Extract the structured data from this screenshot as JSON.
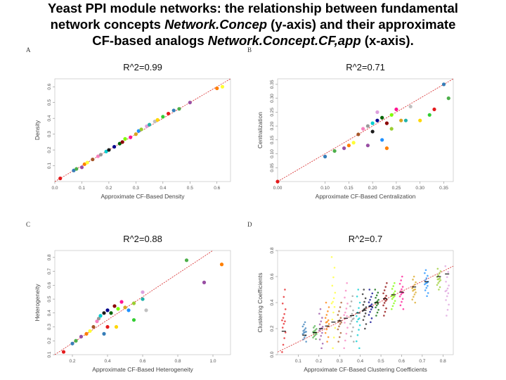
{
  "slide": {
    "title_line1": "Yeast PPI module networks: the relationship between fundamental",
    "title_line2_a": "network concepts ",
    "title_line2_b": "Network.Concep",
    "title_line2_c": " (y-axis) and their approximate",
    "title_line3_a": "CF-based analogs ",
    "title_line3_b": "Network.Concept.CF,app",
    "title_line3_c": " (x-axis)."
  },
  "colors": {
    "fit_line": "#d62728",
    "points": [
      "#e41a1c",
      "#377eb8",
      "#4daf4a",
      "#984ea3",
      "#ff7f00",
      "#ffff33",
      "#a65628",
      "#f781bf",
      "#999999",
      "#00ced1",
      "#1b1b1b",
      "#00008b",
      "#006400",
      "#8b0000",
      "#7fff00",
      "#ff1493",
      "#daa520",
      "#1e90ff",
      "#9acd32",
      "#dda0dd",
      "#20b2aa",
      "#c0c0c0",
      "#ffd700",
      "#32cd32"
    ]
  },
  "chart_data": [
    {
      "type": "scatter",
      "panel": "A",
      "title": "R^2=0.99",
      "xlabel": "Approximate CF-Based Density",
      "ylabel": "Density",
      "xlim": [
        0,
        0.65
      ],
      "ylim": [
        0,
        0.65
      ],
      "xticks": [
        0.0,
        0.1,
        0.2,
        0.3,
        0.4,
        0.5,
        0.6
      ],
      "yticks": [
        0.1,
        0.2,
        0.3,
        0.4,
        0.5,
        0.6
      ],
      "xtick_labels": [
        "0.0",
        "0.1",
        "0.2",
        "0.3",
        "0.4",
        "0.5",
        "0.6"
      ],
      "ytick_labels": [
        "0.1",
        "0.2",
        "0.3",
        "0.4",
        "0.5",
        "0.6"
      ],
      "fit_line": [
        [
          0,
          0
        ],
        [
          0.65,
          0.65
        ]
      ],
      "points": [
        [
          0.02,
          0.02
        ],
        [
          0.07,
          0.07
        ],
        [
          0.08,
          0.08
        ],
        [
          0.1,
          0.09
        ],
        [
          0.11,
          0.11
        ],
        [
          0.12,
          0.12
        ],
        [
          0.14,
          0.14
        ],
        [
          0.16,
          0.16
        ],
        [
          0.17,
          0.17
        ],
        [
          0.19,
          0.19
        ],
        [
          0.2,
          0.2
        ],
        [
          0.22,
          0.22
        ],
        [
          0.24,
          0.24
        ],
        [
          0.25,
          0.25
        ],
        [
          0.26,
          0.27
        ],
        [
          0.28,
          0.28
        ],
        [
          0.3,
          0.3
        ],
        [
          0.31,
          0.32
        ],
        [
          0.32,
          0.33
        ],
        [
          0.34,
          0.35
        ],
        [
          0.35,
          0.36
        ],
        [
          0.37,
          0.38
        ],
        [
          0.38,
          0.39
        ],
        [
          0.4,
          0.41
        ],
        [
          0.42,
          0.43
        ],
        [
          0.44,
          0.45
        ],
        [
          0.46,
          0.46
        ],
        [
          0.5,
          0.5
        ],
        [
          0.6,
          0.59
        ],
        [
          0.62,
          0.6
        ]
      ]
    },
    {
      "type": "scatter",
      "panel": "B",
      "title": "R^2=0.71",
      "xlabel": "Approximate CF-Based Centralization",
      "ylabel": "Centralization",
      "xlim": [
        0,
        0.37
      ],
      "ylim": [
        0,
        0.37
      ],
      "xticks": [
        0.0,
        0.1,
        0.15,
        0.2,
        0.25,
        0.3,
        0.35
      ],
      "yticks": [
        0.05,
        0.1,
        0.15,
        0.2,
        0.25,
        0.3,
        0.35
      ],
      "xtick_labels": [
        "0.00",
        "0.10",
        "0.15",
        "0.20",
        "0.25",
        "0.30",
        "0.35"
      ],
      "ytick_labels": [
        "0.05",
        "0.10",
        "0.15",
        "0.20",
        "0.25",
        "0.30",
        "0.35"
      ],
      "fit_line": [
        [
          0,
          0
        ],
        [
          0.37,
          0.37
        ]
      ],
      "points": [
        [
          0.0,
          0.0
        ],
        [
          0.1,
          0.09
        ],
        [
          0.12,
          0.11
        ],
        [
          0.14,
          0.12
        ],
        [
          0.15,
          0.13
        ],
        [
          0.16,
          0.14
        ],
        [
          0.17,
          0.17
        ],
        [
          0.18,
          0.19
        ],
        [
          0.19,
          0.2
        ],
        [
          0.2,
          0.21
        ],
        [
          0.2,
          0.18
        ],
        [
          0.21,
          0.22
        ],
        [
          0.22,
          0.23
        ],
        [
          0.23,
          0.21
        ],
        [
          0.24,
          0.24
        ],
        [
          0.25,
          0.26
        ],
        [
          0.26,
          0.22
        ],
        [
          0.22,
          0.15
        ],
        [
          0.24,
          0.19
        ],
        [
          0.21,
          0.25
        ],
        [
          0.27,
          0.22
        ],
        [
          0.28,
          0.27
        ],
        [
          0.3,
          0.22
        ],
        [
          0.32,
          0.24
        ],
        [
          0.33,
          0.26
        ],
        [
          0.35,
          0.35
        ],
        [
          0.36,
          0.3
        ],
        [
          0.19,
          0.13
        ],
        [
          0.23,
          0.12
        ]
      ]
    },
    {
      "type": "scatter",
      "panel": "C",
      "title": "R^2=0.88",
      "xlabel": "Approximate CF-Based Heterogeneity",
      "ylabel": "Heterogeneity",
      "xlim": [
        0.1,
        1.1
      ],
      "ylim": [
        0.1,
        0.85
      ],
      "xticks": [
        0.2,
        0.4,
        0.6,
        0.8,
        1.0
      ],
      "yticks": [
        0.1,
        0.2,
        0.3,
        0.4,
        0.5,
        0.6,
        0.7,
        0.8
      ],
      "xtick_labels": [
        "0.2",
        "0.4",
        "0.6",
        "0.8",
        "1.0"
      ],
      "ytick_labels": [
        "0.1",
        "0.2",
        "0.3",
        "0.4",
        "0.5",
        "0.6",
        "0.7",
        "0.8"
      ],
      "fit_line": [
        [
          0.1,
          0.1
        ],
        [
          1.0,
          0.85
        ]
      ],
      "points": [
        [
          0.15,
          0.12
        ],
        [
          0.2,
          0.18
        ],
        [
          0.22,
          0.2
        ],
        [
          0.25,
          0.23
        ],
        [
          0.28,
          0.25
        ],
        [
          0.3,
          0.27
        ],
        [
          0.32,
          0.3
        ],
        [
          0.34,
          0.34
        ],
        [
          0.35,
          0.36
        ],
        [
          0.36,
          0.38
        ],
        [
          0.38,
          0.4
        ],
        [
          0.4,
          0.42
        ],
        [
          0.42,
          0.4
        ],
        [
          0.44,
          0.45
        ],
        [
          0.46,
          0.43
        ],
        [
          0.48,
          0.48
        ],
        [
          0.5,
          0.44
        ],
        [
          0.52,
          0.42
        ],
        [
          0.55,
          0.47
        ],
        [
          0.6,
          0.55
        ],
        [
          0.6,
          0.5
        ],
        [
          0.62,
          0.42
        ],
        [
          0.45,
          0.3
        ],
        [
          0.55,
          0.35
        ],
        [
          0.4,
          0.3
        ],
        [
          0.38,
          0.25
        ],
        [
          0.85,
          0.78
        ],
        [
          0.95,
          0.62
        ],
        [
          1.05,
          0.75
        ]
      ]
    },
    {
      "type": "scatter",
      "panel": "D",
      "title": "R^2=0.7",
      "xlabel": "Approximate CF-Based Clustering Coefficients",
      "ylabel": "Clustering Coefficients",
      "xlim": [
        0.0,
        0.85
      ],
      "ylim": [
        0.0,
        0.8
      ],
      "xticks": [
        0.1,
        0.2,
        0.3,
        0.4,
        0.5,
        0.6,
        0.7,
        0.8
      ],
      "yticks": [
        0.0,
        0.2,
        0.4,
        0.6,
        0.8
      ],
      "xtick_labels": [
        "0.1",
        "0.2",
        "0.3",
        "0.4",
        "0.5",
        "0.6",
        "0.7",
        "0.8"
      ],
      "ytick_labels": [
        "0.0",
        "0.2",
        "0.4",
        "0.6",
        "0.8"
      ],
      "fit_line": [
        [
          0.0,
          0.02
        ],
        [
          0.85,
          0.68
        ]
      ],
      "column_groups": [
        {
          "x": 0.03,
          "y_min": 0.02,
          "y_max": 0.5,
          "center": 0.18
        },
        {
          "x": 0.13,
          "y_min": 0.1,
          "y_max": 0.25,
          "center": 0.15
        },
        {
          "x": 0.18,
          "y_min": 0.12,
          "y_max": 0.22,
          "center": 0.17
        },
        {
          "x": 0.21,
          "y_min": 0.05,
          "y_max": 0.35,
          "center": 0.2
        },
        {
          "x": 0.24,
          "y_min": 0.1,
          "y_max": 0.4,
          "center": 0.22
        },
        {
          "x": 0.27,
          "y_min": 0.05,
          "y_max": 0.75,
          "center": 0.25
        },
        {
          "x": 0.3,
          "y_min": 0.1,
          "y_max": 0.4,
          "center": 0.26
        },
        {
          "x": 0.33,
          "y_min": 0.05,
          "y_max": 0.55,
          "center": 0.28
        },
        {
          "x": 0.36,
          "y_min": 0.1,
          "y_max": 0.45,
          "center": 0.3
        },
        {
          "x": 0.39,
          "y_min": 0.05,
          "y_max": 0.5,
          "center": 0.32
        },
        {
          "x": 0.42,
          "y_min": 0.2,
          "y_max": 0.5,
          "center": 0.34
        },
        {
          "x": 0.45,
          "y_min": 0.25,
          "y_max": 0.5,
          "center": 0.37
        },
        {
          "x": 0.48,
          "y_min": 0.3,
          "y_max": 0.5,
          "center": 0.4
        },
        {
          "x": 0.52,
          "y_min": 0.3,
          "y_max": 0.55,
          "center": 0.43
        },
        {
          "x": 0.56,
          "y_min": 0.35,
          "y_max": 0.55,
          "center": 0.46
        },
        {
          "x": 0.6,
          "y_min": 0.35,
          "y_max": 0.6,
          "center": 0.48
        },
        {
          "x": 0.66,
          "y_min": 0.4,
          "y_max": 0.6,
          "center": 0.52
        },
        {
          "x": 0.72,
          "y_min": 0.45,
          "y_max": 0.65,
          "center": 0.56
        },
        {
          "x": 0.78,
          "y_min": 0.5,
          "y_max": 0.66,
          "center": 0.6
        },
        {
          "x": 0.82,
          "y_min": 0.3,
          "y_max": 0.68,
          "center": 0.62
        }
      ]
    }
  ]
}
